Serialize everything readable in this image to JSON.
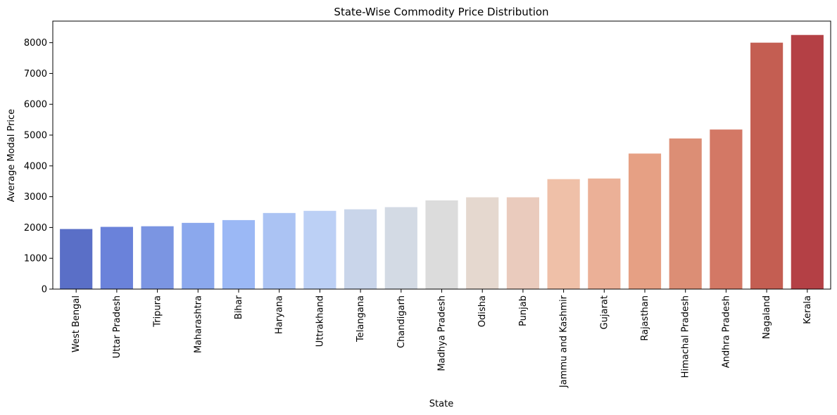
{
  "chart_data": {
    "type": "bar",
    "title": "State-Wise Commodity Price Distribution",
    "xlabel": "State",
    "ylabel": "Average Modal Price",
    "ylim": [
      0,
      8700
    ],
    "yticks": [
      0,
      1000,
      2000,
      3000,
      4000,
      5000,
      6000,
      7000,
      8000
    ],
    "grid": false,
    "legend": "none",
    "categories": [
      "West Bengal",
      "Uttar Pradesh",
      "Tripura",
      "Maharashtra",
      "Bihar",
      "Haryana",
      "Uttrakhand",
      "Telangana",
      "Chandigarh",
      "Madhya Pradesh",
      "Odisha",
      "Punjab",
      "Jammu and Kashmir",
      "Gujarat",
      "Rajasthan",
      "Himachal Pradesh",
      "Andhra Pradesh",
      "Nagaland",
      "Kerala"
    ],
    "values": [
      1950,
      2020,
      2040,
      2150,
      2240,
      2470,
      2540,
      2590,
      2660,
      2880,
      2980,
      2980,
      3570,
      3590,
      4400,
      4890,
      5180,
      8000,
      8250
    ],
    "colors": [
      "#5a6fc7",
      "#6a82da",
      "#7b95e2",
      "#8ba8ed",
      "#9bb8f5",
      "#abc3f3",
      "#bcd0f5",
      "#c9d5ea",
      "#d3dae4",
      "#dcdcdc",
      "#e5d8cf",
      "#eacbbd",
      "#efc0a8",
      "#ebb097",
      "#e6a084",
      "#dc8e75",
      "#d37865",
      "#c45e52",
      "#b44045"
    ]
  }
}
